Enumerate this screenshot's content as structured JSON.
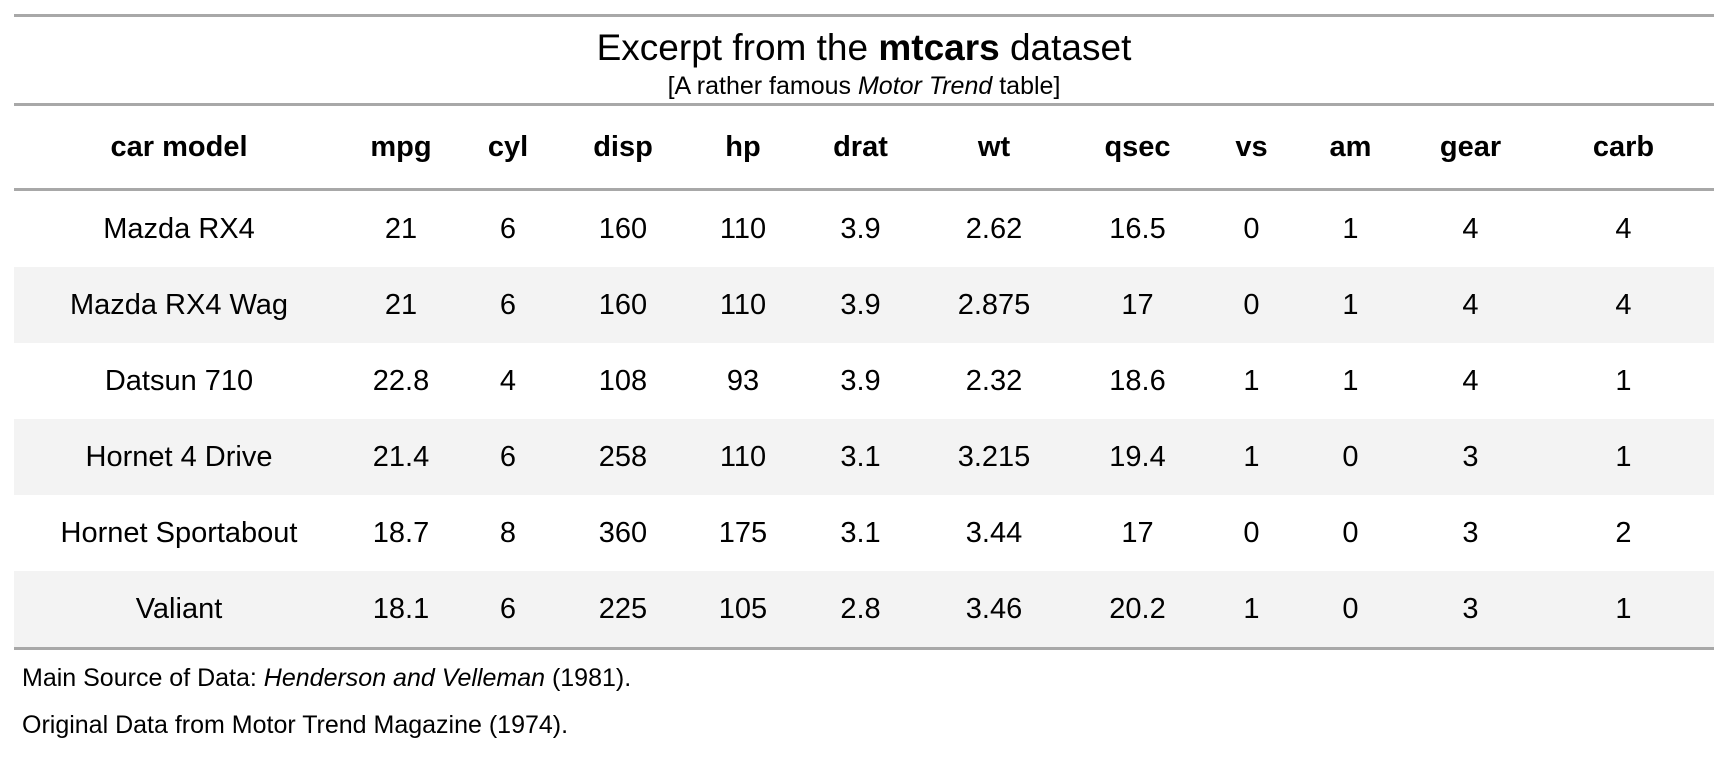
{
  "header": {
    "title_prefix": "Excerpt from the ",
    "title_bold": "mtcars",
    "title_suffix": " dataset",
    "subtitle_prefix": "[A rather famous ",
    "subtitle_italic": "Motor Trend",
    "subtitle_suffix": " table]"
  },
  "table": {
    "columns": [
      "car model",
      "mpg",
      "cyl",
      "disp",
      "hp",
      "drat",
      "wt",
      "qsec",
      "vs",
      "am",
      "gear",
      "carb"
    ],
    "rows": [
      [
        "Mazda RX4",
        "21",
        "6",
        "160",
        "110",
        "3.9",
        "2.62",
        "16.5",
        "0",
        "1",
        "4",
        "4"
      ],
      [
        "Mazda RX4 Wag",
        "21",
        "6",
        "160",
        "110",
        "3.9",
        "2.875",
        "17",
        "0",
        "1",
        "4",
        "4"
      ],
      [
        "Datsun 710",
        "22.8",
        "4",
        "108",
        "93",
        "3.9",
        "2.32",
        "18.6",
        "1",
        "1",
        "4",
        "1"
      ],
      [
        "Hornet 4 Drive",
        "21.4",
        "6",
        "258",
        "110",
        "3.1",
        "3.215",
        "19.4",
        "1",
        "0",
        "3",
        "1"
      ],
      [
        "Hornet Sportabout",
        "18.7",
        "8",
        "360",
        "175",
        "3.1",
        "3.44",
        "17",
        "0",
        "0",
        "3",
        "2"
      ],
      [
        "Valiant",
        "18.1",
        "6",
        "225",
        "105",
        "2.8",
        "3.46",
        "20.2",
        "1",
        "0",
        "3",
        "1"
      ]
    ]
  },
  "footnotes": {
    "line1_prefix": "Main Source of Data: ",
    "line1_italic": "Henderson and Velleman",
    "line1_suffix": " (1981).",
    "line2": "Original Data from Motor Trend Magazine (1974)."
  },
  "colors": {
    "rule": "#a8a8a8",
    "stripe": "#f3f3f3",
    "text": "#000000"
  }
}
